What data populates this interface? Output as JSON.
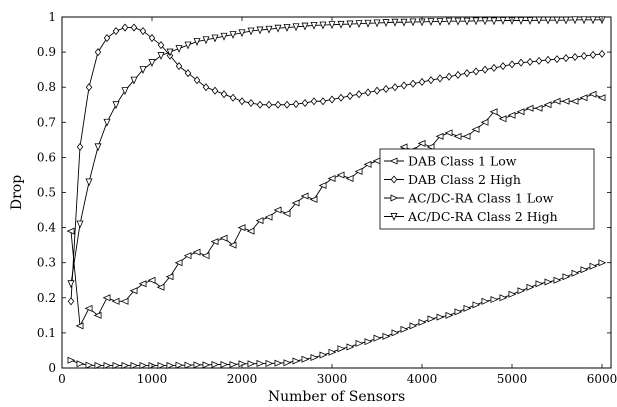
{
  "chart_data": {
    "type": "line",
    "xlabel": "Number of Sensors",
    "ylabel": "Drop",
    "xlim": [
      0,
      6100
    ],
    "ylim": [
      0,
      1
    ],
    "x_ticks": [
      0,
      1000,
      2000,
      3000,
      4000,
      5000,
      6000
    ],
    "y_ticks": [
      0,
      0.1,
      0.2,
      0.3,
      0.4,
      0.5,
      0.6,
      0.7,
      0.8,
      0.9,
      1
    ],
    "x_tick_labels": [
      "0",
      "1000",
      "2000",
      "3000",
      "4000",
      "5000",
      "6000"
    ],
    "y_tick_labels": [
      "0",
      "0.1",
      "0.2",
      "0.3",
      "0.4",
      "0.5",
      "0.6",
      "0.7",
      "0.8",
      "0.9",
      "1"
    ],
    "grid": false,
    "legend_position": "center-right",
    "x": [
      100,
      200,
      300,
      400,
      500,
      600,
      700,
      800,
      900,
      1000,
      1100,
      1200,
      1300,
      1400,
      1500,
      1600,
      1700,
      1800,
      1900,
      2000,
      2100,
      2200,
      2300,
      2400,
      2500,
      2600,
      2700,
      2800,
      2900,
      3000,
      3100,
      3200,
      3300,
      3400,
      3500,
      3600,
      3700,
      3800,
      3900,
      4000,
      4100,
      4200,
      4300,
      4400,
      4500,
      4600,
      4700,
      4800,
      4900,
      5000,
      5100,
      5200,
      5300,
      5400,
      5500,
      5600,
      5700,
      5800,
      5900,
      6000
    ],
    "series": [
      {
        "name": "DAB Class 1 Low",
        "marker": "triangle-left",
        "values": [
          0.39,
          0.12,
          0.17,
          0.15,
          0.2,
          0.19,
          0.19,
          0.22,
          0.24,
          0.25,
          0.23,
          0.26,
          0.3,
          0.32,
          0.33,
          0.32,
          0.36,
          0.37,
          0.35,
          0.4,
          0.39,
          0.42,
          0.43,
          0.45,
          0.44,
          0.47,
          0.49,
          0.48,
          0.52,
          0.54,
          0.55,
          0.54,
          0.56,
          0.58,
          0.59,
          0.58,
          0.61,
          0.63,
          0.62,
          0.64,
          0.63,
          0.66,
          0.67,
          0.66,
          0.66,
          0.68,
          0.7,
          0.73,
          0.71,
          0.72,
          0.73,
          0.74,
          0.74,
          0.75,
          0.76,
          0.76,
          0.76,
          0.77,
          0.78,
          0.77
        ]
      },
      {
        "name": "DAB Class 2 High",
        "marker": "diamond",
        "values": [
          0.19,
          0.63,
          0.8,
          0.9,
          0.94,
          0.96,
          0.97,
          0.97,
          0.96,
          0.94,
          0.92,
          0.89,
          0.86,
          0.84,
          0.82,
          0.8,
          0.79,
          0.78,
          0.77,
          0.76,
          0.755,
          0.75,
          0.75,
          0.75,
          0.75,
          0.752,
          0.755,
          0.76,
          0.76,
          0.765,
          0.77,
          0.775,
          0.78,
          0.785,
          0.79,
          0.795,
          0.8,
          0.805,
          0.81,
          0.815,
          0.82,
          0.825,
          0.83,
          0.835,
          0.84,
          0.845,
          0.85,
          0.855,
          0.86,
          0.865,
          0.87,
          0.872,
          0.875,
          0.878,
          0.88,
          0.883,
          0.886,
          0.889,
          0.892,
          0.895
        ]
      },
      {
        "name": "AC/DC-RA Class 1 Low",
        "marker": "triangle-right",
        "values": [
          0.022,
          0.012,
          0.008,
          0.007,
          0.007,
          0.007,
          0.007,
          0.007,
          0.007,
          0.007,
          0.007,
          0.007,
          0.008,
          0.008,
          0.009,
          0.009,
          0.01,
          0.01,
          0.01,
          0.012,
          0.012,
          0.013,
          0.013,
          0.014,
          0.015,
          0.02,
          0.025,
          0.03,
          0.037,
          0.045,
          0.055,
          0.06,
          0.07,
          0.075,
          0.085,
          0.09,
          0.1,
          0.11,
          0.12,
          0.13,
          0.14,
          0.145,
          0.15,
          0.16,
          0.17,
          0.18,
          0.19,
          0.195,
          0.2,
          0.21,
          0.22,
          0.23,
          0.24,
          0.245,
          0.25,
          0.26,
          0.27,
          0.28,
          0.29,
          0.3
        ]
      },
      {
        "name": "AC/DC-RA Class 2 High",
        "marker": "triangle-down",
        "values": [
          0.24,
          0.41,
          0.53,
          0.63,
          0.7,
          0.75,
          0.79,
          0.82,
          0.85,
          0.87,
          0.89,
          0.9,
          0.91,
          0.92,
          0.93,
          0.935,
          0.94,
          0.945,
          0.95,
          0.955,
          0.96,
          0.963,
          0.965,
          0.968,
          0.97,
          0.972,
          0.974,
          0.976,
          0.977,
          0.978,
          0.979,
          0.98,
          0.981,
          0.982,
          0.983,
          0.984,
          0.985,
          0.985,
          0.986,
          0.986,
          0.987,
          0.987,
          0.988,
          0.988,
          0.988,
          0.989,
          0.989,
          0.989,
          0.99,
          0.99,
          0.99,
          0.99,
          0.991,
          0.991,
          0.991,
          0.991,
          0.992,
          0.992,
          0.992,
          0.992
        ]
      }
    ]
  }
}
